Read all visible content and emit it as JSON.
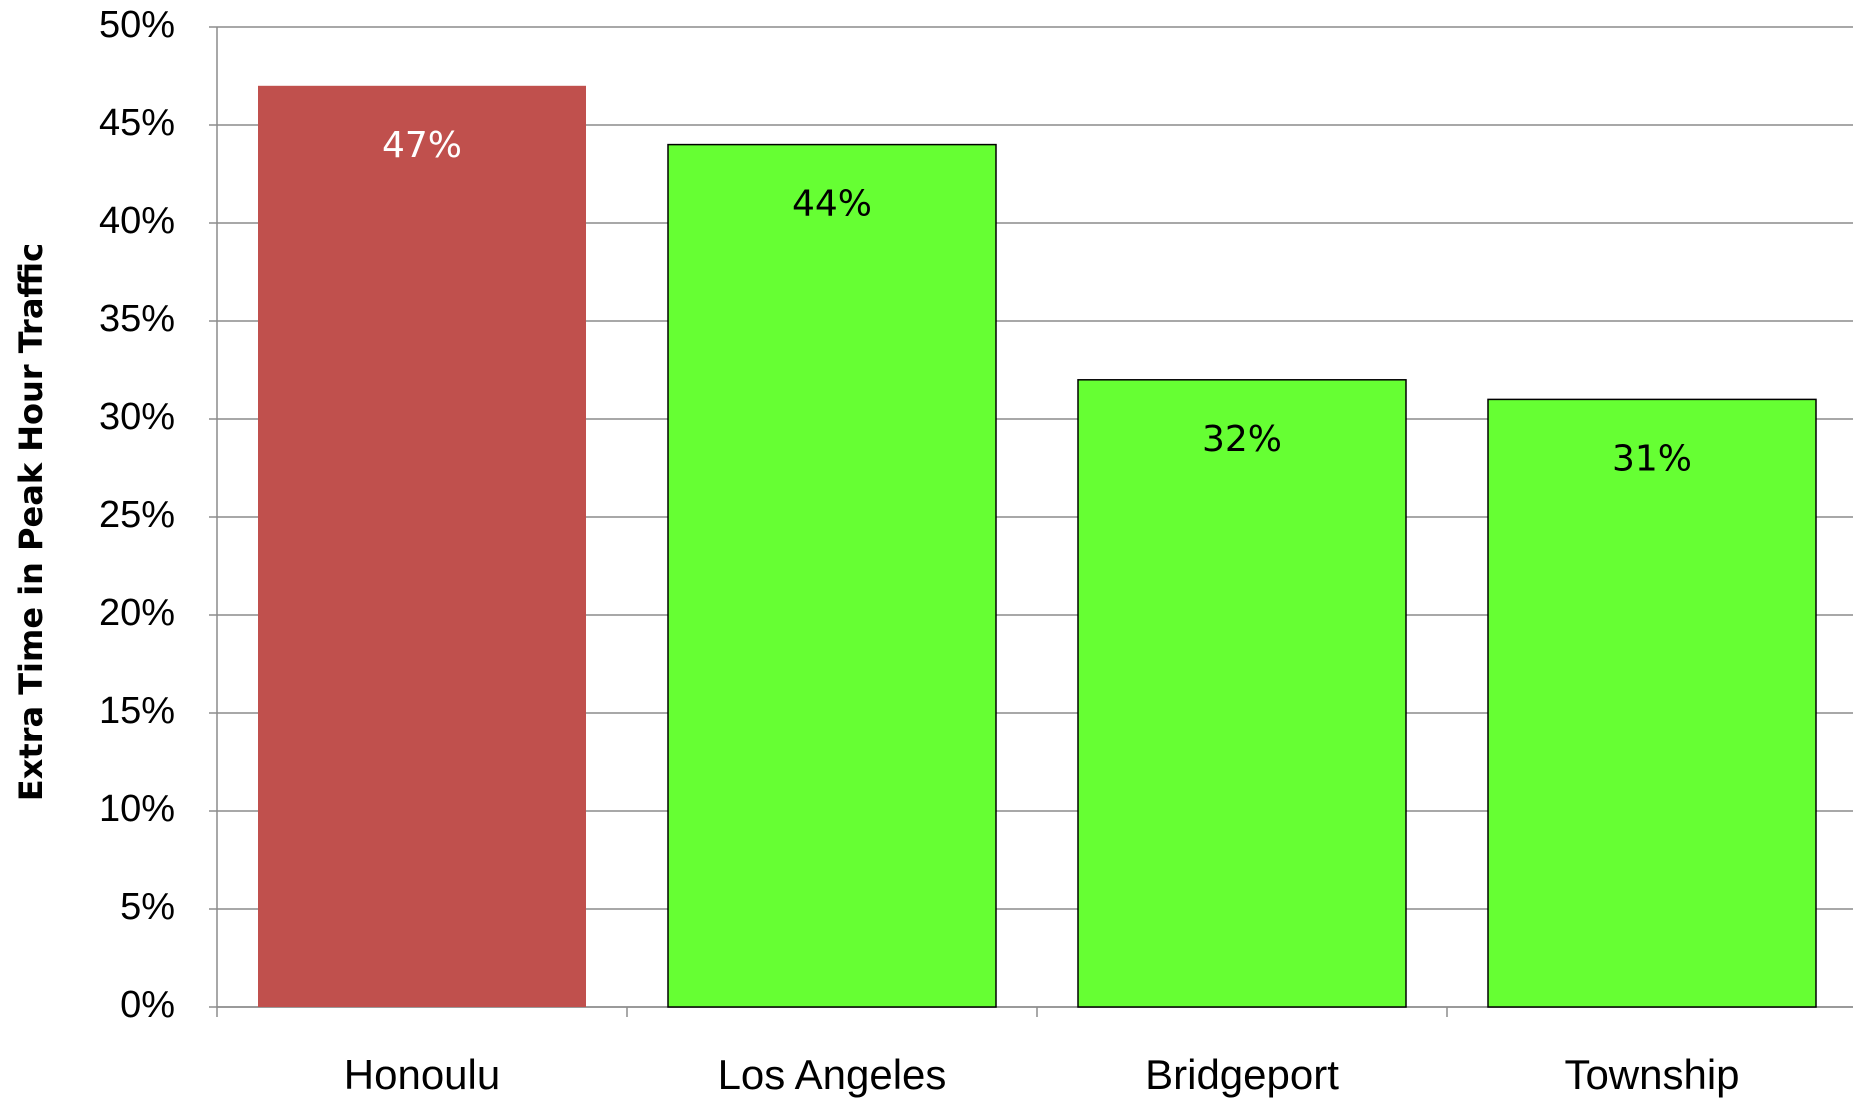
{
  "chart_data": {
    "type": "bar",
    "y_axis_label": "Extra Time in Peak Hour Traffic",
    "categories": [
      "Honoulu",
      "Los Angeles",
      "Bridgeport",
      "Township"
    ],
    "values": [
      47,
      44,
      32,
      31
    ],
    "value_labels": [
      "47%",
      "44%",
      "32%",
      "31%"
    ],
    "colors": [
      "#c0504d",
      "#66ff33",
      "#66ff33",
      "#66ff33"
    ],
    "label_colors": [
      "#ffffff",
      "#000000",
      "#000000",
      "#000000"
    ],
    "ylim": [
      0,
      50
    ],
    "yticks": [
      {
        "value": 0,
        "label": "0%"
      },
      {
        "value": 5,
        "label": "5%"
      },
      {
        "value": 10,
        "label": "10%"
      },
      {
        "value": 15,
        "label": "15%"
      },
      {
        "value": 20,
        "label": "20%"
      },
      {
        "value": 25,
        "label": "25%"
      },
      {
        "value": 30,
        "label": "30%"
      },
      {
        "value": 35,
        "label": "35%"
      },
      {
        "value": 40,
        "label": "40%"
      },
      {
        "value": 45,
        "label": "45%"
      },
      {
        "value": 50,
        "label": "50%"
      }
    ],
    "grid": true
  }
}
